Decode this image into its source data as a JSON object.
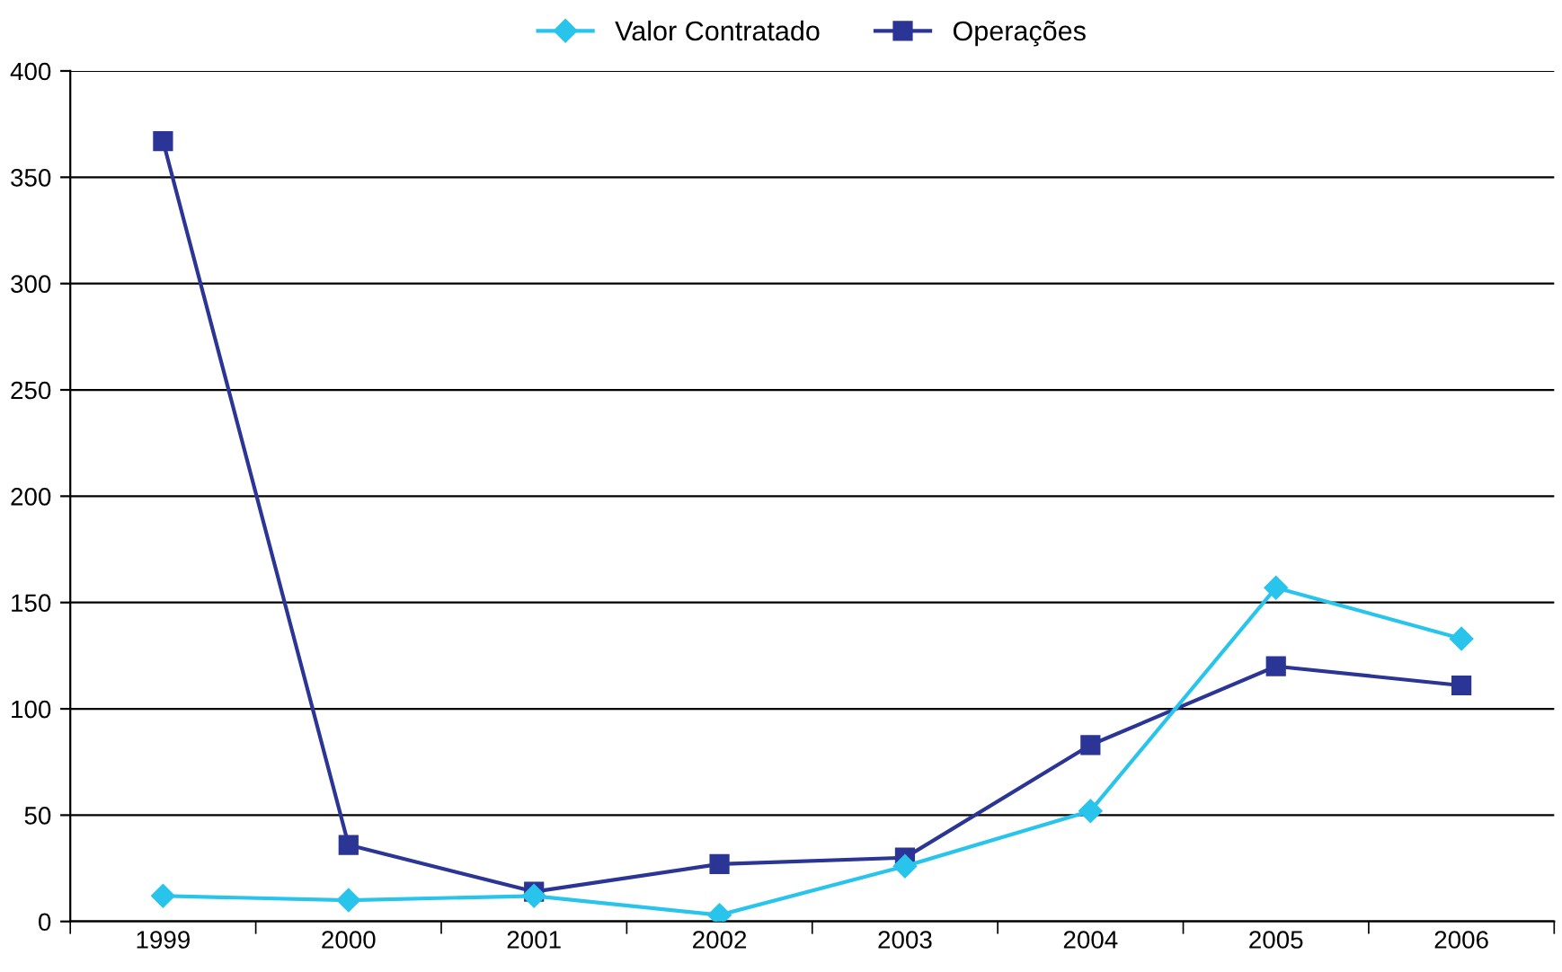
{
  "chart_data": {
    "type": "line",
    "categories": [
      "1999",
      "2000",
      "2001",
      "2002",
      "2003",
      "2004",
      "2005",
      "2006"
    ],
    "series": [
      {
        "name": "Valor Contratado",
        "color": "#29c4ec",
        "marker": "diamond",
        "values": [
          12,
          10,
          12,
          3,
          26,
          52,
          157,
          133
        ]
      },
      {
        "name": "Operações",
        "color": "#2b3595",
        "marker": "square",
        "values": [
          367,
          36,
          14,
          27,
          30,
          83,
          120,
          111
        ]
      }
    ],
    "ylim": [
      0,
      400
    ],
    "yticks": [
      0,
      50,
      100,
      150,
      200,
      250,
      300,
      350,
      400
    ],
    "grid": "y",
    "legend": "top",
    "line_style": "solid"
  }
}
